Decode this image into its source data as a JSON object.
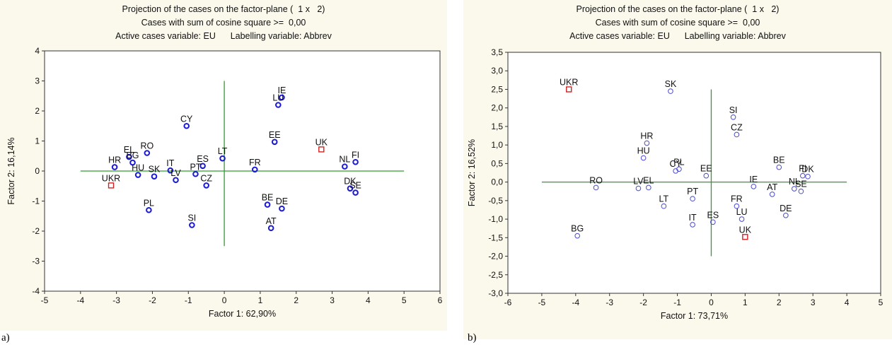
{
  "panel_labels": [
    "a)",
    "b)"
  ],
  "charts": [
    {
      "title_lines": [
        "Projection of the cases on the factor-plane (  1 x   2)",
        "Cases with sum of cosine square >=  0,00",
        "Active cases variable: EU      Labelling variable: Abbrev"
      ]
    },
    {
      "title_lines": [
        "Projection of the cases on the factor-plane (  1 x   2)",
        "Cases with sum of cosine square >=  0,00",
        "Active cases variable: EU      Labelling variable: Abbrev"
      ]
    }
  ],
  "chart_data": [
    {
      "type": "scatter",
      "xlabel": "Factor 1: 62,90%",
      "ylabel": "Factor 2: 16,14%",
      "xlim": [
        -5,
        6
      ],
      "ylim": [
        -4,
        4
      ],
      "xticks": [
        -5,
        -4,
        -3,
        -2,
        -1,
        0,
        1,
        2,
        3,
        4,
        5,
        6
      ],
      "yticks": [
        -4,
        -3,
        -2,
        -1,
        0,
        1,
        2,
        3,
        4
      ],
      "xtick_labels": [
        "-5",
        "-4",
        "-3",
        "-2",
        "-1",
        "0",
        "1",
        "2",
        "3",
        "4",
        "5",
        "6"
      ],
      "ytick_labels": [
        "-4",
        "-3",
        "-2",
        "-1",
        "0",
        "1",
        "2",
        "3",
        "4"
      ],
      "hline": {
        "y": 0,
        "x_from": -4,
        "x_to": 5
      },
      "vline": {
        "x": 0,
        "y_from": -2.5,
        "y_to": 3
      },
      "colors": {
        "active": "#1a1ad6",
        "supplementary": "#d62020",
        "axis_lines": "#2e9e2e"
      },
      "points": [
        {
          "label": "IE",
          "x": 1.6,
          "y": 2.45,
          "group": "active"
        },
        {
          "label": "LU",
          "x": 1.5,
          "y": 2.2,
          "group": "active"
        },
        {
          "label": "CY",
          "x": -1.05,
          "y": 1.5,
          "group": "active"
        },
        {
          "label": "EE",
          "x": 1.4,
          "y": 0.97,
          "group": "active"
        },
        {
          "label": "UK",
          "x": 2.7,
          "y": 0.72,
          "group": "supplementary"
        },
        {
          "label": "RO",
          "x": -2.15,
          "y": 0.6,
          "group": "active"
        },
        {
          "label": "EL",
          "x": -2.65,
          "y": 0.47,
          "group": "active"
        },
        {
          "label": "BG",
          "x": -2.55,
          "y": 0.28,
          "group": "active"
        },
        {
          "label": "HR",
          "x": -3.05,
          "y": 0.13,
          "group": "active"
        },
        {
          "label": "LT",
          "x": -0.05,
          "y": 0.42,
          "group": "active"
        },
        {
          "label": "FR",
          "x": 0.85,
          "y": 0.05,
          "group": "active"
        },
        {
          "label": "NL",
          "x": 3.35,
          "y": 0.15,
          "group": "active"
        },
        {
          "label": "FI",
          "x": 3.65,
          "y": 0.3,
          "group": "active"
        },
        {
          "label": "ES",
          "x": -0.6,
          "y": 0.17,
          "group": "active"
        },
        {
          "label": "IT",
          "x": -1.5,
          "y": 0.02,
          "group": "active"
        },
        {
          "label": "PT",
          "x": -0.8,
          "y": -0.1,
          "group": "active"
        },
        {
          "label": "HU",
          "x": -2.4,
          "y": -0.13,
          "group": "active"
        },
        {
          "label": "SK",
          "x": -1.95,
          "y": -0.18,
          "group": "active"
        },
        {
          "label": "LV",
          "x": -1.35,
          "y": -0.3,
          "group": "active"
        },
        {
          "label": "CZ",
          "x": -0.5,
          "y": -0.48,
          "group": "active"
        },
        {
          "label": "UKR",
          "x": -3.15,
          "y": -0.48,
          "group": "supplementary"
        },
        {
          "label": "DK",
          "x": 3.5,
          "y": -0.58,
          "group": "active"
        },
        {
          "label": "SE",
          "x": 3.65,
          "y": -0.72,
          "group": "active"
        },
        {
          "label": "BE",
          "x": 1.2,
          "y": -1.12,
          "group": "active"
        },
        {
          "label": "DE",
          "x": 1.6,
          "y": -1.25,
          "group": "active"
        },
        {
          "label": "PL",
          "x": -2.1,
          "y": -1.3,
          "group": "active"
        },
        {
          "label": "SI",
          "x": -0.9,
          "y": -1.8,
          "group": "active"
        },
        {
          "label": "AT",
          "x": 1.3,
          "y": -1.9,
          "group": "active"
        }
      ]
    },
    {
      "type": "scatter",
      "xlabel": "Factor 1: 73,71%",
      "ylabel": "Factor 2: 16,52%",
      "xlim": [
        -6,
        5
      ],
      "ylim": [
        -3,
        3.5
      ],
      "xticks": [
        -6,
        -5,
        -4,
        -3,
        -2,
        -1,
        0,
        1,
        2,
        3,
        4,
        5
      ],
      "yticks": [
        -3,
        -2.5,
        -2,
        -1.5,
        -1,
        -0.5,
        0,
        0.5,
        1,
        1.5,
        2,
        2.5,
        3,
        3.5
      ],
      "xtick_labels": [
        "-6",
        "-5",
        "-4",
        "-3",
        "-2",
        "-1",
        "0",
        "1",
        "2",
        "3",
        "4",
        "5"
      ],
      "ytick_labels": [
        "-3,0",
        "-2,5",
        "-2,0",
        "-1,5",
        "-1,0",
        "-0,5",
        "0,0",
        "0,5",
        "1,0",
        "1,5",
        "2,0",
        "2,5",
        "3,0",
        "3,5"
      ],
      "hline": {
        "y": 0,
        "x_from": -5,
        "x_to": 4
      },
      "vline": {
        "x": 0,
        "y_from": -2,
        "y_to": 2.5
      },
      "colors": {
        "active": "#4a4ad0",
        "supplementary": "#d62020",
        "axis_lines": "#2e9e2e"
      },
      "points": [
        {
          "label": "UKR",
          "x": -4.2,
          "y": 2.5,
          "group": "supplementary"
        },
        {
          "label": "SK",
          "x": -1.2,
          "y": 2.45,
          "group": "active"
        },
        {
          "label": "SI",
          "x": 0.65,
          "y": 1.75,
          "group": "active"
        },
        {
          "label": "CZ",
          "x": 0.75,
          "y": 1.28,
          "group": "active"
        },
        {
          "label": "HR",
          "x": -1.9,
          "y": 1.05,
          "group": "active"
        },
        {
          "label": "HU",
          "x": -2.0,
          "y": 0.65,
          "group": "active"
        },
        {
          "label": "PL",
          "x": -0.95,
          "y": 0.35,
          "group": "active"
        },
        {
          "label": "CY",
          "x": -1.05,
          "y": 0.3,
          "group": "active"
        },
        {
          "label": "EE",
          "x": -0.15,
          "y": 0.17,
          "group": "active"
        },
        {
          "label": "BE",
          "x": 2.0,
          "y": 0.4,
          "group": "active"
        },
        {
          "label": "FI",
          "x": 2.7,
          "y": 0.17,
          "group": "active"
        },
        {
          "label": "DK",
          "x": 2.85,
          "y": 0.15,
          "group": "active"
        },
        {
          "label": "RO",
          "x": -3.4,
          "y": -0.15,
          "group": "active"
        },
        {
          "label": "LV",
          "x": -2.15,
          "y": -0.17,
          "group": "active"
        },
        {
          "label": "EL",
          "x": -1.85,
          "y": -0.15,
          "group": "active"
        },
        {
          "label": "IE",
          "x": 1.25,
          "y": -0.12,
          "group": "active"
        },
        {
          "label": "NL",
          "x": 2.45,
          "y": -0.18,
          "group": "active"
        },
        {
          "label": "SE",
          "x": 2.65,
          "y": -0.25,
          "group": "active"
        },
        {
          "label": "AT",
          "x": 1.8,
          "y": -0.33,
          "group": "active"
        },
        {
          "label": "PT",
          "x": -0.55,
          "y": -0.45,
          "group": "active"
        },
        {
          "label": "LT",
          "x": -1.4,
          "y": -0.65,
          "group": "active"
        },
        {
          "label": "FR",
          "x": 0.75,
          "y": -0.65,
          "group": "active"
        },
        {
          "label": "DE",
          "x": 2.2,
          "y": -0.9,
          "group": "active"
        },
        {
          "label": "LU",
          "x": 0.9,
          "y": -1.0,
          "group": "active"
        },
        {
          "label": "ES",
          "x": 0.05,
          "y": -1.08,
          "group": "active"
        },
        {
          "label": "IT",
          "x": -0.55,
          "y": -1.15,
          "group": "active"
        },
        {
          "label": "BG",
          "x": -3.95,
          "y": -1.45,
          "group": "active"
        },
        {
          "label": "UK",
          "x": 1.0,
          "y": -1.48,
          "group": "supplementary"
        }
      ]
    }
  ]
}
